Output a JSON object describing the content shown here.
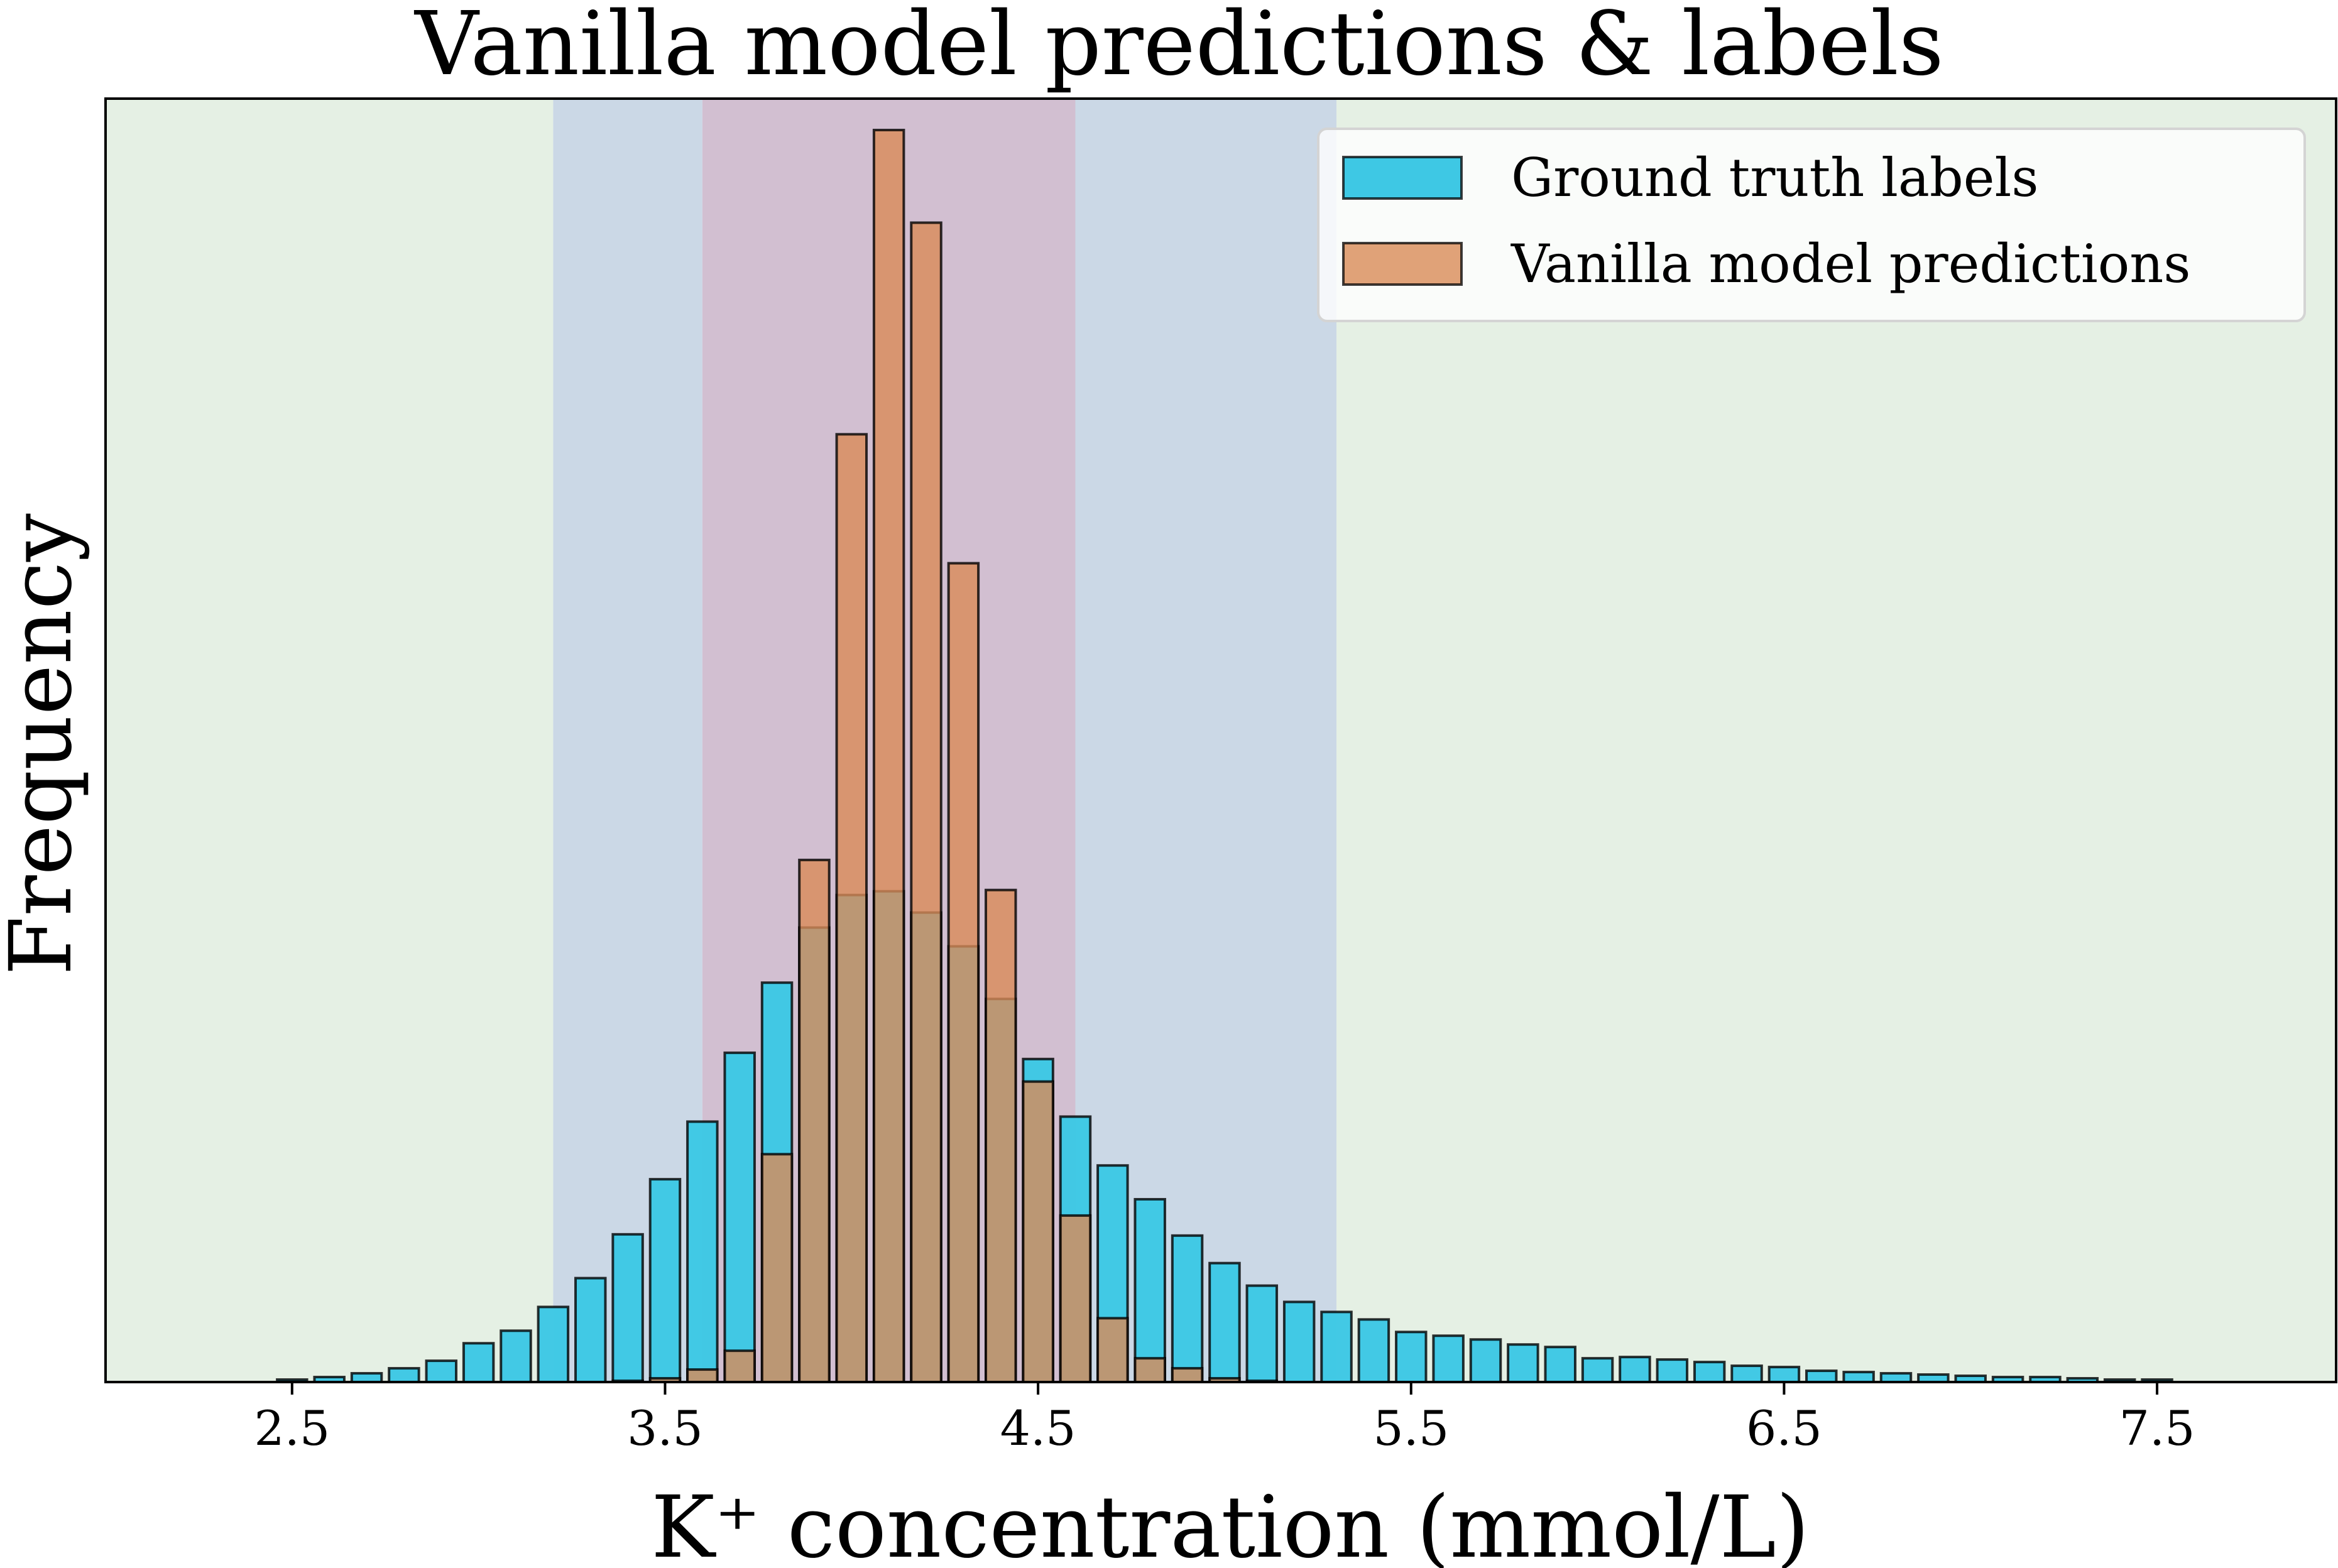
{
  "chart_data": {
    "type": "bar",
    "title": "Vanilla model predictions & labels",
    "xlabel": "K⁺ concentration (mmol/L)",
    "ylabel": "Frequency",
    "xlim": [
      2.0,
      7.98
    ],
    "ylim": [
      0,
      1000
    ],
    "xticks": [
      2.5,
      3.5,
      4.5,
      5.5,
      6.5,
      7.5
    ],
    "xtick_labels": [
      "2.5",
      "3.5",
      "4.5",
      "5.5",
      "6.5",
      "7.5"
    ],
    "y_ticks_shown": false,
    "grid": false,
    "legend_position": "upper right",
    "bar_width": 0.08,
    "background_bands": [
      {
        "x0": 2.0,
        "x1": 3.2,
        "color": "#e5f0e4"
      },
      {
        "x0": 3.2,
        "x1": 3.6,
        "color": "#cbd8e6"
      },
      {
        "x0": 3.6,
        "x1": 4.6,
        "color": "#d2bfd1"
      },
      {
        "x0": 4.6,
        "x1": 5.3,
        "color": "#cbd8e6"
      },
      {
        "x0": 5.3,
        "x1": 7.98,
        "color": "#e5f0e4"
      }
    ],
    "x": [
      2.5,
      2.6,
      2.7,
      2.8,
      2.9,
      3.0,
      3.1,
      3.2,
      3.3,
      3.4,
      3.5,
      3.6,
      3.7,
      3.8,
      3.9,
      4.0,
      4.1,
      4.2,
      4.3,
      4.4,
      4.5,
      4.6,
      4.7,
      4.8,
      4.9,
      5.0,
      5.1,
      5.2,
      5.3,
      5.4,
      5.5,
      5.6,
      5.7,
      5.8,
      5.9,
      6.0,
      6.1,
      6.2,
      6.3,
      6.4,
      6.5,
      6.6,
      6.7,
      6.8,
      6.9,
      7.0,
      7.1,
      7.2,
      7.3,
      7.4,
      7.5
    ],
    "series": [
      {
        "name": "Ground truth labels",
        "color": "#3ec8e4",
        "values": [
          2,
          4,
          7,
          11,
          17,
          31,
          41,
          60,
          83,
          118,
          162,
          208,
          263,
          319,
          363,
          389,
          392,
          375,
          348,
          306,
          258,
          212,
          173,
          146,
          117,
          95,
          77,
          64,
          56,
          50,
          40,
          37,
          34,
          30,
          28,
          19,
          20,
          18,
          16,
          13,
          12,
          9,
          8,
          7,
          6,
          5,
          4,
          4,
          3,
          2,
          2
        ]
      },
      {
        "name": "Vanilla model predictions",
        "color": "#d98b57",
        "values": [
          0,
          0,
          0,
          0,
          0,
          0,
          0,
          0,
          0,
          1,
          3,
          10,
          25,
          182,
          417,
          757,
          1000,
          926,
          654,
          393,
          240,
          133,
          51,
          19,
          11,
          3,
          1,
          0,
          0,
          0,
          0,
          0,
          0,
          0,
          0,
          0,
          0,
          0,
          0,
          0,
          0,
          0,
          0,
          0,
          0,
          0,
          0,
          0,
          0,
          0,
          0
        ]
      }
    ]
  }
}
